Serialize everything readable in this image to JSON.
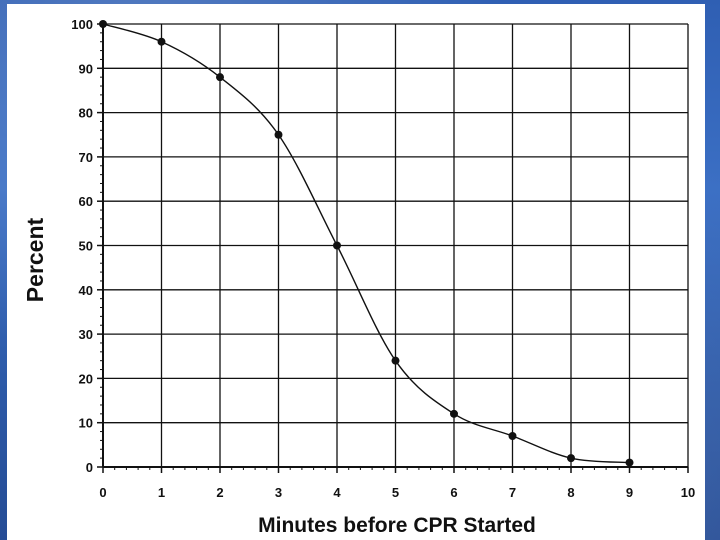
{
  "chart_data": {
    "type": "line",
    "title": "",
    "xlabel": "Minutes before CPR Started",
    "ylabel": "Percent",
    "xlim": [
      0,
      10
    ],
    "ylim": [
      0,
      100
    ],
    "x_ticks": [
      0,
      1,
      2,
      3,
      4,
      5,
      6,
      7,
      8,
      9,
      10
    ],
    "y_ticks": [
      0,
      10,
      20,
      30,
      40,
      50,
      60,
      70,
      80,
      90,
      100
    ],
    "grid": true,
    "legend": "none",
    "series": [
      {
        "x": [
          0,
          1,
          2,
          3,
          4,
          5,
          6,
          7,
          8,
          9
        ],
        "y": [
          100,
          96,
          88,
          75,
          50,
          24,
          12,
          7,
          2,
          1
        ],
        "marker": "circle",
        "color": "#111111"
      }
    ]
  }
}
